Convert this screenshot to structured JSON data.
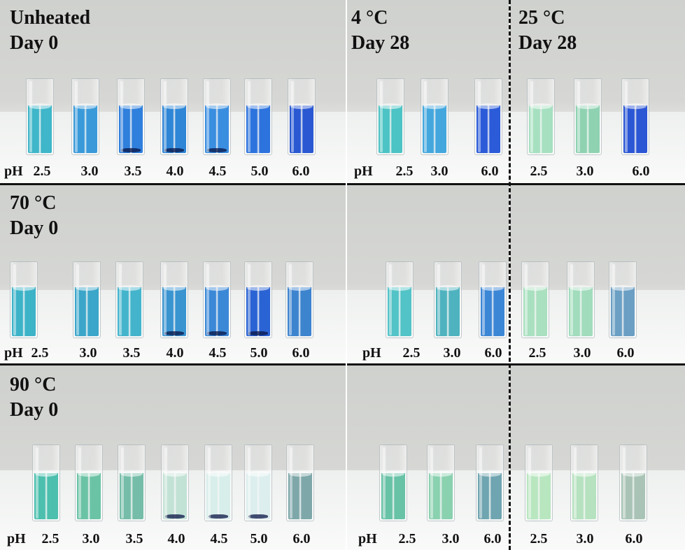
{
  "groups": {
    "unheated": {
      "title": "Unheated",
      "subtitle": "Day 0"
    },
    "c70": {
      "title": "70 °C",
      "subtitle": "Day 0"
    },
    "c90": {
      "title": "90 °C",
      "subtitle": "Day 0"
    },
    "c4": {
      "title": "4 °C",
      "subtitle": "Day 28"
    },
    "c25": {
      "title": "25 °C",
      "subtitle": "Day 28"
    }
  },
  "ph_prefix": "pH",
  "ph_values_day0": [
    "2.5",
    "3.0",
    "3.5",
    "4.0",
    "4.5",
    "5.0",
    "6.0"
  ],
  "ph_values_day28": [
    "2.5",
    "3.0",
    "6.0"
  ],
  "rows": [
    {
      "day0": [
        "#3fb6c9",
        "#3a9ad9",
        "#2f7fdc",
        "#2f86d6",
        "#3a8ee0",
        "#2d73dd",
        "#2958d2"
      ],
      "day0_sediment": [
        false,
        false,
        true,
        true,
        true,
        false,
        false
      ],
      "c4": [
        "#4cc3c4",
        "#43a7dd",
        "#2b5bd8"
      ],
      "c25": [
        "#a6e0c0",
        "#8fd2b2",
        "#2b56d4"
      ]
    },
    {
      "day0": [
        "#3db3c8",
        "#3ba6c9",
        "#44b4cc",
        "#3a94d0",
        "#3b88d7",
        "#2a63d4",
        "#3d84cf"
      ],
      "day0_sediment": [
        false,
        false,
        false,
        true,
        true,
        true,
        false
      ],
      "c4": [
        "#52c3c7",
        "#4fb3bf",
        "#3c86d6"
      ],
      "c25": [
        "#a9e0bf",
        "#a1dcbc",
        "#6b9fc4"
      ]
    },
    {
      "day0": [
        "#4cbfae",
        "#6bc3a6",
        "#75bda8",
        "#c3e2d6",
        "#d8eeea",
        "#dceeed",
        "#7ea7a9"
      ],
      "day0_sediment": [
        false,
        false,
        false,
        true,
        true,
        true,
        false
      ],
      "c4": [
        "#68c2a6",
        "#8ad1b0",
        "#6fa5b0"
      ],
      "c25": [
        "#b8e6bf",
        "#b6e2bf",
        "#a9c4b6"
      ]
    }
  ]
}
